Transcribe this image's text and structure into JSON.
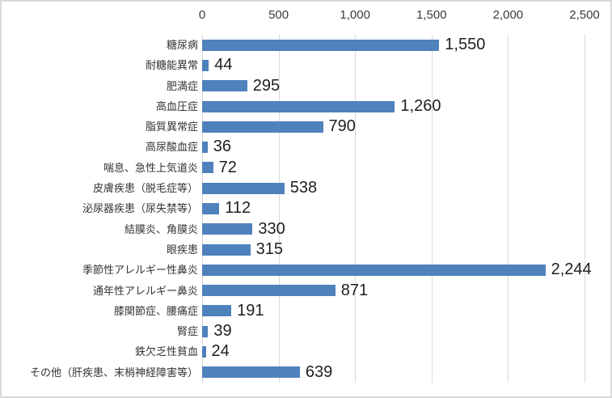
{
  "chart_data": {
    "type": "bar",
    "orientation": "horizontal",
    "title": "",
    "xlabel": "",
    "ylabel": "",
    "legend": "none",
    "grid": "vertical",
    "xlim": [
      0,
      2500
    ],
    "x_ticks": [
      "0",
      "500",
      "1,000",
      "1,500",
      "2,000",
      "2,500"
    ],
    "categories": [
      "糖尿病",
      "耐糖能異常",
      "肥満症",
      "高血圧症",
      "脂質異常症",
      "高尿酸血症",
      "喘息、急性上気道炎",
      "皮膚疾患（脱毛症等）",
      "泌尿器疾患（尿失禁等）",
      "結膜炎、角膜炎",
      "眼疾患",
      "季節性アレルギー性鼻炎",
      "通年性アレルギー鼻炎",
      "膝関節症、腰痛症",
      "腎症",
      "鉄欠乏性貧血",
      "その他（肝疾患、末梢神経障害等）"
    ],
    "values": [
      1550,
      44,
      295,
      1260,
      790,
      36,
      72,
      538,
      112,
      330,
      315,
      2244,
      871,
      191,
      39,
      24,
      639
    ],
    "value_labels": [
      "1,550",
      "44",
      "295",
      "1,260",
      "790",
      "36",
      "72",
      "538",
      "112",
      "330",
      "315",
      "2,244",
      "871",
      "191",
      "39",
      "24",
      "639"
    ],
    "bar_color": "#4f81bd",
    "gridline_color": "#d9d9d9",
    "border_color": "#d9d9d9"
  }
}
